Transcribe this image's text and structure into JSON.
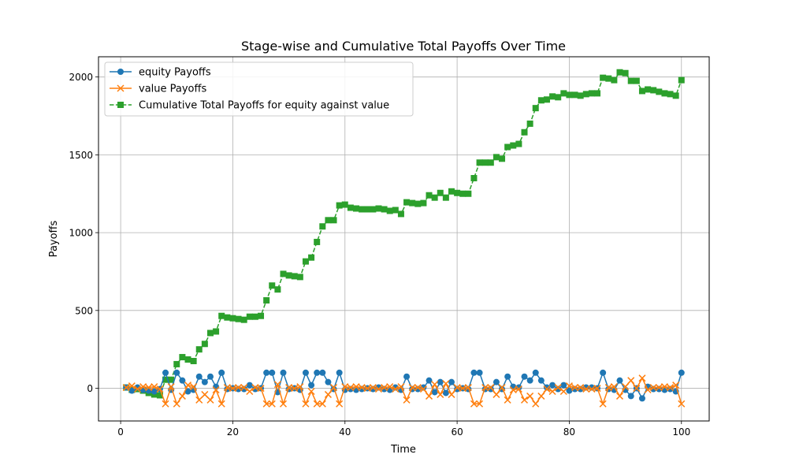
{
  "chart_data": {
    "type": "line",
    "title": "Stage-wise and Cumulative Total Payoffs Over Time",
    "xlabel": "Time",
    "ylabel": "Payoffs",
    "xlim": [
      -3.95,
      104.95
    ],
    "ylim": [
      -210,
      2130
    ],
    "xticks": [
      0,
      20,
      40,
      60,
      80,
      100
    ],
    "yticks": [
      0,
      500,
      1000,
      1500,
      2000
    ],
    "grid": true,
    "legend_position": "top-left",
    "x": [
      1,
      2,
      3,
      4,
      5,
      6,
      7,
      8,
      9,
      10,
      11,
      12,
      13,
      14,
      15,
      16,
      17,
      18,
      19,
      20,
      21,
      22,
      23,
      24,
      25,
      26,
      27,
      28,
      29,
      30,
      31,
      32,
      33,
      34,
      35,
      36,
      37,
      38,
      39,
      40,
      41,
      42,
      43,
      44,
      45,
      46,
      47,
      48,
      49,
      50,
      51,
      52,
      53,
      54,
      55,
      56,
      57,
      58,
      59,
      60,
      61,
      62,
      63,
      64,
      65,
      66,
      67,
      68,
      69,
      70,
      71,
      72,
      73,
      74,
      75,
      76,
      77,
      78,
      79,
      80,
      81,
      82,
      83,
      84,
      85,
      86,
      87,
      88,
      89,
      90,
      91,
      92,
      93,
      94,
      95,
      96,
      97,
      98,
      99,
      100
    ],
    "series": [
      {
        "name": "equity Payoffs",
        "color": "#1f77b4",
        "marker": "circle",
        "linestyle": "solid",
        "values": [
          5,
          -15,
          5,
          -10,
          -15,
          -20,
          -5,
          100,
          -10,
          100,
          50,
          -20,
          -10,
          75,
          40,
          75,
          10,
          100,
          -5,
          0,
          -5,
          -5,
          20,
          -5,
          0,
          100,
          100,
          -25,
          100,
          -5,
          0,
          -10,
          100,
          20,
          100,
          100,
          40,
          -5,
          100,
          -10,
          -5,
          -10,
          -5,
          0,
          -5,
          5,
          -5,
          -10,
          5,
          -10,
          75,
          -5,
          -5,
          5,
          50,
          -25,
          40,
          -30,
          40,
          -5,
          0,
          -5,
          100,
          100,
          -5,
          -5,
          40,
          -5,
          75,
          10,
          5,
          75,
          50,
          100,
          50,
          5,
          20,
          -5,
          20,
          -15,
          -5,
          -5,
          5,
          5,
          0,
          100,
          -5,
          -10,
          50,
          -10,
          -50,
          0,
          -65,
          10,
          -5,
          -5,
          -10,
          -5,
          -20,
          100
        ]
      },
      {
        "name": "value Payoffs",
        "color": "#ff7f0e",
        "marker": "x",
        "linestyle": "solid",
        "values": [
          5,
          15,
          -5,
          10,
          5,
          10,
          -5,
          -100,
          10,
          -100,
          -50,
          20,
          10,
          -75,
          -40,
          -75,
          -10,
          -100,
          5,
          0,
          5,
          5,
          -20,
          5,
          0,
          -100,
          -100,
          25,
          -100,
          5,
          0,
          10,
          -100,
          -20,
          -100,
          -100,
          -40,
          5,
          -100,
          10,
          5,
          10,
          5,
          0,
          5,
          -5,
          5,
          10,
          -5,
          10,
          -75,
          5,
          5,
          -5,
          -50,
          25,
          -40,
          30,
          -40,
          5,
          0,
          5,
          -100,
          -100,
          5,
          5,
          -40,
          5,
          -75,
          -10,
          -5,
          -75,
          -50,
          -100,
          -50,
          -5,
          -20,
          5,
          -20,
          15,
          5,
          5,
          -5,
          -5,
          0,
          -100,
          5,
          10,
          -50,
          10,
          50,
          0,
          65,
          -10,
          5,
          5,
          10,
          5,
          20,
          -100
        ]
      },
      {
        "name": "Cumulative Total Payoffs for equity against value",
        "color": "#2ca02c",
        "marker": "square",
        "linestyle": "dashed",
        "values": [
          5,
          -10,
          -5,
          -15,
          -30,
          -40,
          -45,
          55,
          55,
          155,
          200,
          185,
          175,
          250,
          285,
          355,
          365,
          465,
          455,
          450,
          445,
          440,
          460,
          460,
          465,
          565,
          660,
          635,
          735,
          725,
          720,
          715,
          815,
          840,
          940,
          1040,
          1080,
          1080,
          1175,
          1180,
          1160,
          1155,
          1150,
          1150,
          1150,
          1155,
          1150,
          1140,
          1145,
          1120,
          1195,
          1190,
          1185,
          1190,
          1240,
          1225,
          1255,
          1225,
          1265,
          1255,
          1250,
          1250,
          1350,
          1450,
          1450,
          1450,
          1485,
          1475,
          1550,
          1560,
          1570,
          1645,
          1700,
          1800,
          1850,
          1855,
          1875,
          1870,
          1895,
          1885,
          1885,
          1880,
          1890,
          1895,
          1895,
          1995,
          1990,
          1980,
          2030,
          2025,
          1975,
          1975,
          1910,
          1920,
          1915,
          1905,
          1895,
          1890,
          1880,
          1980
        ]
      }
    ]
  }
}
